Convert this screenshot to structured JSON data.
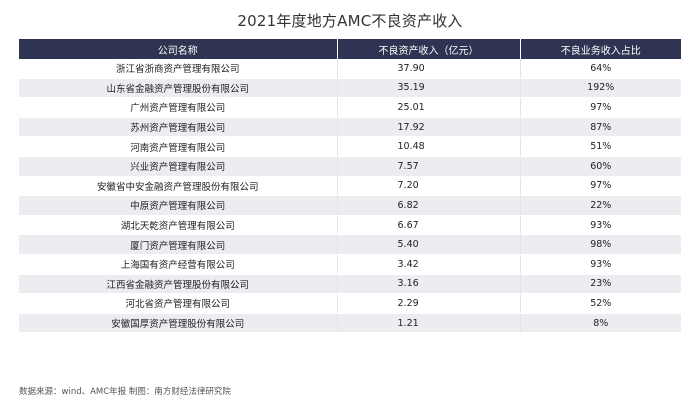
{
  "title": "2021年度地方AMC不良资产收入",
  "table": {
    "headers": [
      "公司名称",
      "不良资产收入（亿元）",
      "不良业务收入占比"
    ],
    "rows": [
      [
        "浙江省浙商资产管理有限公司",
        "37.90",
        "64%"
      ],
      [
        "山东省金融资产管理股份有限公司",
        "35.19",
        "192%"
      ],
      [
        "广州资产管理有限公司",
        "25.01",
        "97%"
      ],
      [
        "苏州资产管理有限公司",
        "17.92",
        "87%"
      ],
      [
        "河南资产管理有限公司",
        "10.48",
        "51%"
      ],
      [
        "兴业资产管理有限公司",
        "7.57",
        "60%"
      ],
      [
        "安徽省中安金融资产管理股份有限公司",
        "7.20",
        "97%"
      ],
      [
        "中原资产管理有限公司",
        "6.82",
        "22%"
      ],
      [
        "湖北天乾资产管理有限公司",
        "6.67",
        "93%"
      ],
      [
        "厦门资产管理有限公司",
        "5.40",
        "98%"
      ],
      [
        "上海国有资产经营有限公司",
        "3.42",
        "93%"
      ],
      [
        "江西省金融资产管理股份有限公司",
        "3.16",
        "23%"
      ],
      [
        "河北省资产管理有限公司",
        "2.29",
        "52%"
      ],
      [
        "安徽国厚资产管理股份有限公司",
        "1.21",
        "8%"
      ]
    ]
  },
  "source": "数据来源：wind、AMC年报 制图：南方财经法律研究院"
}
